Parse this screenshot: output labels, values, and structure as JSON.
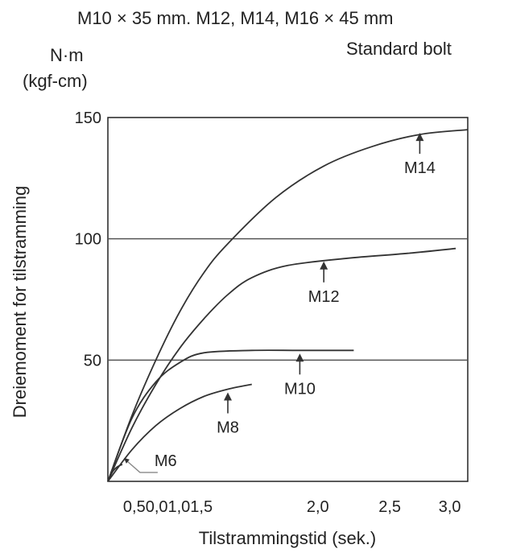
{
  "header": {
    "spec_line": "M10 × 35 mm. M12, M14, M16 × 45 mm",
    "bolt_type": "Standard bolt",
    "unit_nm": "N·m",
    "unit_kgf": "(kgf-cm)"
  },
  "chart_data": {
    "type": "line",
    "xlabel": "Tilstrammingstid (sek.)",
    "ylabel": "Dreiemoment for tilstramming",
    "xlim": [
      0,
      3.0
    ],
    "ylim": [
      0,
      150
    ],
    "y_ticks": [
      {
        "value": 50,
        "label": "50"
      },
      {
        "value": 100,
        "label": "100"
      },
      {
        "value": 150,
        "label": "150"
      }
    ],
    "x_tick_labels": [
      {
        "value": 0.5,
        "label": "0,50,01,01,5"
      },
      {
        "value": 1.75,
        "label": "2,0"
      },
      {
        "value": 2.35,
        "label": "2,5"
      },
      {
        "value": 2.85,
        "label": "3,0"
      }
    ],
    "gridlines_y": [
      50,
      100
    ],
    "series": [
      {
        "name": "M6",
        "x": [
          0,
          0.04,
          0.08,
          0.12
        ],
        "y": [
          0,
          4,
          6,
          7
        ]
      },
      {
        "name": "M8",
        "x": [
          0,
          0.2,
          0.4,
          0.6,
          0.8,
          1.0,
          1.2
        ],
        "y": [
          0,
          13,
          23,
          30,
          35,
          38,
          40
        ]
      },
      {
        "name": "M10",
        "x": [
          0,
          0.2,
          0.4,
          0.6,
          0.8,
          1.2,
          1.6,
          2.05
        ],
        "y": [
          0,
          26,
          41,
          49,
          53,
          54,
          54,
          54
        ]
      },
      {
        "name": "M12",
        "x": [
          0,
          0.2,
          0.4,
          0.6,
          0.8,
          1.0,
          1.2,
          1.5,
          2.0,
          2.5,
          2.9
        ],
        "y": [
          0,
          22,
          40,
          55,
          67,
          77,
          84,
          89,
          92,
          94,
          96
        ]
      },
      {
        "name": "M14",
        "x": [
          0,
          0.2,
          0.4,
          0.6,
          0.8,
          1.0,
          1.4,
          1.8,
          2.2,
          2.6,
          3.0
        ],
        "y": [
          0,
          27,
          50,
          70,
          86,
          98,
          117,
          130,
          138,
          143,
          145
        ]
      }
    ],
    "annotations": [
      {
        "text": "M14",
        "x": 2.6,
        "y": 145
      },
      {
        "text": "M12",
        "x": 1.8,
        "y": 92
      },
      {
        "text": "M10",
        "x": 1.6,
        "y": 54
      },
      {
        "text": "M8",
        "x": 1.0,
        "y": 38
      },
      {
        "text": "M6",
        "x": 0.12,
        "y": 7
      }
    ]
  },
  "colors": {
    "curve": "#333333",
    "grid": "#555555",
    "axis": "#222222",
    "text": "#222222",
    "m6_pointer": "#888888"
  }
}
